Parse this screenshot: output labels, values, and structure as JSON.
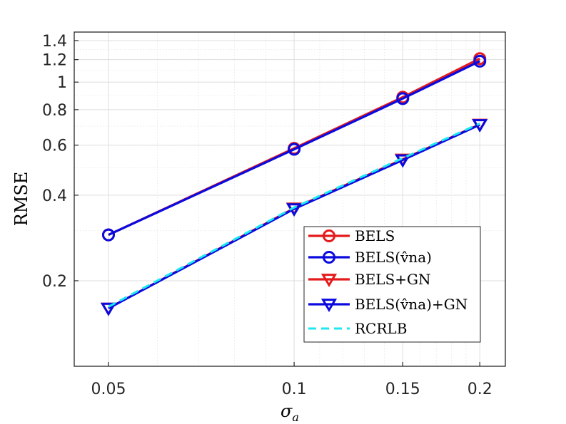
{
  "chart_data": {
    "type": "line",
    "xscale": "log",
    "yscale": "log",
    "xlim": [
      0.044,
      0.22
    ],
    "ylim": [
      0.1,
      1.5
    ],
    "x": [
      0.05,
      0.1,
      0.15,
      0.2
    ],
    "xticks": [
      "0.05",
      "0.1",
      "0.15",
      "0.2"
    ],
    "yticks": [
      "0.2",
      "0.4",
      "0.6",
      "0.8",
      "1",
      "1.2",
      "1.4"
    ],
    "xlabel": "σa",
    "ylabel": "RMSE",
    "grid": true,
    "legend_position": "bottom-right",
    "series": [
      {
        "name": "BELS",
        "values": [
          0.29,
          0.585,
          0.885,
          1.21
        ],
        "color": "#e41a1c",
        "marker": "circle",
        "linestyle": "solid"
      },
      {
        "name": "BELS(v̂na)",
        "values": [
          0.29,
          0.58,
          0.875,
          1.185
        ],
        "color": "#0a0adf",
        "marker": "circle",
        "linestyle": "solid"
      },
      {
        "name": "BELS+GN",
        "values": [
          0.16,
          0.36,
          0.535,
          0.71
        ],
        "color": "#e41a1c",
        "marker": "triangle-down",
        "linestyle": "solid"
      },
      {
        "name": "BELS(v̂na)+GN",
        "values": [
          0.16,
          0.358,
          0.532,
          0.708
        ],
        "color": "#0a0adf",
        "marker": "triangle-down",
        "linestyle": "solid"
      },
      {
        "name": "RCRLB",
        "values": [
          0.162,
          0.362,
          0.54,
          0.715
        ],
        "color": "#1ee8f0",
        "marker": "none",
        "linestyle": "dashed"
      }
    ]
  }
}
